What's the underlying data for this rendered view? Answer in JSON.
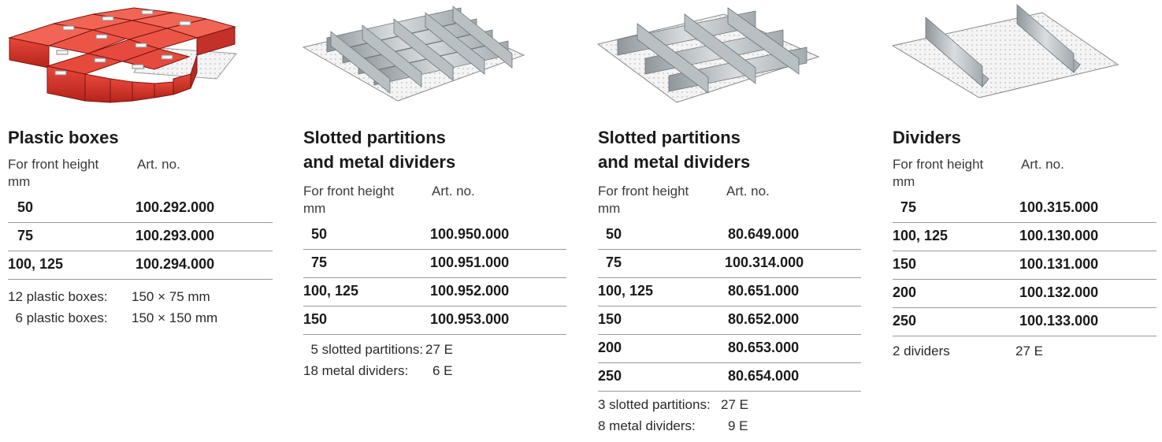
{
  "columns": [
    {
      "illustration": "red-plastic-boxes-drawer-insert",
      "title_lines": [
        "Plastic boxes"
      ],
      "header": {
        "front_height": "For front height",
        "unit": "mm",
        "art_no": "Art. no."
      },
      "rows": [
        {
          "height": "50",
          "art": "100.292.000"
        },
        {
          "height": "75",
          "art": "100.293.000"
        },
        {
          "height": "100, 125",
          "art": "100.294.000"
        }
      ],
      "notes": [
        {
          "label": "12 plastic boxes:",
          "value": "150 × 75 mm"
        },
        {
          "label": "  6 plastic boxes:",
          "value": "150 × 150 mm"
        }
      ]
    },
    {
      "illustration": "slotted-partitions-metal-dividers-grid",
      "title_lines": [
        "Slotted partitions",
        "and metal dividers"
      ],
      "header": {
        "front_height": "For front height",
        "unit": "mm",
        "art_no": "Art. no."
      },
      "rows": [
        {
          "height": "50",
          "art": "100.950.000"
        },
        {
          "height": "75",
          "art": "100.951.000"
        },
        {
          "height": "100, 125",
          "art": "100.952.000"
        },
        {
          "height": "150",
          "art": "100.953.000"
        }
      ],
      "notes": [
        {
          "label": "  5 slotted partitions:",
          "value": "27 E"
        },
        {
          "label": "18 metal dividers:",
          "value": "6 E"
        }
      ]
    },
    {
      "illustration": "slotted-partitions-metal-dividers-wide",
      "title_lines": [
        "Slotted partitions",
        "and metal dividers"
      ],
      "header": {
        "front_height": "For front height",
        "unit": "mm",
        "art_no": "Art. no."
      },
      "rows": [
        {
          "height": "50",
          "art": "80.649.000"
        },
        {
          "height": "75",
          "art": "100.314.000"
        },
        {
          "height": "100, 125",
          "art": "80.651.000"
        },
        {
          "height": "150",
          "art": "80.652.000"
        },
        {
          "height": "200",
          "art": "80.653.000"
        },
        {
          "height": "250",
          "art": "80.654.000"
        }
      ],
      "notes": [
        {
          "label": "3 slotted partitions:",
          "value": "27 E"
        },
        {
          "label": "8 metal dividers:",
          "value": "9 E"
        }
      ]
    },
    {
      "illustration": "two-dividers-drawer-mat",
      "title_lines": [
        "Dividers"
      ],
      "header": {
        "front_height": "For front height",
        "unit": "mm",
        "art_no": "Art. no."
      },
      "rows": [
        {
          "height": "75",
          "art": "100.315.000"
        },
        {
          "height": "100, 125",
          "art": "100.130.000"
        },
        {
          "height": "150",
          "art": "100.131.000"
        },
        {
          "height": "200",
          "art": "100.132.000"
        },
        {
          "height": "250",
          "art": "100.133.000"
        }
      ],
      "notes": [
        {
          "label": "2 dividers",
          "value": "27 E"
        }
      ]
    }
  ]
}
